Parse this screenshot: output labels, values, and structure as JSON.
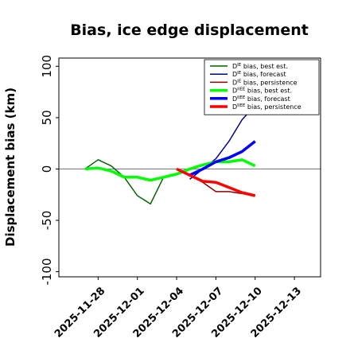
{
  "chart_data": {
    "type": "line",
    "title": "Bias, ice edge displacement",
    "ylabel": "Displacement bias (km)",
    "xlabel": "",
    "ylim": [
      -105,
      108
    ],
    "xlim": [
      "2025-11-25",
      "2025-12-15"
    ],
    "y_ticks": [
      -100,
      -50,
      0,
      50,
      100
    ],
    "x_ticks": [
      "2025-11-28",
      "2025-12-01",
      "2025-12-04",
      "2025-12-07",
      "2025-12-10",
      "2025-12-13"
    ],
    "x_tick_colors": [
      "#000000",
      "#000000",
      "#1a7f1a",
      "#000000",
      "#000000",
      "#000000"
    ],
    "reference_line": 0,
    "legend_position": "top-right",
    "series": [
      {
        "name_main": "D",
        "name_sup": "IE",
        "name_rest": " bias, best est.",
        "color": "#006400",
        "width": 1.5,
        "x": [
          "2025-11-27",
          "2025-11-28",
          "2025-11-29",
          "2025-11-30",
          "2025-12-01",
          "2025-12-02",
          "2025-12-03"
        ],
        "y": [
          0,
          9,
          3,
          -8,
          -26,
          -34,
          -8
        ]
      },
      {
        "name_main": "D",
        "name_sup": "IE",
        "name_rest": " bias, forecast",
        "color": "#00008b",
        "width": 1.5,
        "x": [
          "2025-12-05",
          "2025-12-06",
          "2025-12-07",
          "2025-12-08",
          "2025-12-09",
          "2025-12-10"
        ],
        "y": [
          -10,
          0,
          10,
          27,
          48,
          62
        ]
      },
      {
        "name_main": "D",
        "name_sup": "IE",
        "name_rest": " bias, persistence",
        "color": "#8b0000",
        "width": 1.5,
        "x": [
          "2025-12-04",
          "2025-12-05",
          "2025-12-06",
          "2025-12-07",
          "2025-12-08",
          "2025-12-09",
          "2025-12-10"
        ],
        "y": [
          0,
          -6,
          -13,
          -22,
          -22,
          -24,
          -26
        ]
      },
      {
        "name_main": "D",
        "name_sup": "IIEE",
        "name_rest": " bias, best est.",
        "color": "#00ff00",
        "width": 3.5,
        "x": [
          "2025-11-27",
          "2025-11-28",
          "2025-11-29",
          "2025-11-30",
          "2025-12-01",
          "2025-12-02",
          "2025-12-03",
          "2025-12-04",
          "2025-12-05",
          "2025-12-06",
          "2025-12-07",
          "2025-12-08",
          "2025-12-09",
          "2025-12-10"
        ],
        "y": [
          0,
          1,
          -2,
          -8,
          -8,
          -11,
          -8,
          -5,
          0,
          4,
          7,
          7,
          9,
          3
        ]
      },
      {
        "name_main": "D",
        "name_sup": "IIEE",
        "name_rest": " bias, forecast",
        "color": "#0000ff",
        "width": 3.5,
        "x": [
          "2025-12-05",
          "2025-12-06",
          "2025-12-07",
          "2025-12-08",
          "2025-12-09",
          "2025-12-10"
        ],
        "y": [
          -6,
          0,
          7,
          11,
          17,
          27
        ]
      },
      {
        "name_main": "D",
        "name_sup": "IIEE",
        "name_rest": " bias, persistence",
        "color": "#ff0000",
        "width": 3.5,
        "x": [
          "2025-12-04",
          "2025-12-05",
          "2025-12-06",
          "2025-12-07",
          "2025-12-08",
          "2025-12-09",
          "2025-12-10"
        ],
        "y": [
          0,
          -6,
          -12,
          -13,
          -18,
          -23,
          -26
        ]
      }
    ]
  }
}
